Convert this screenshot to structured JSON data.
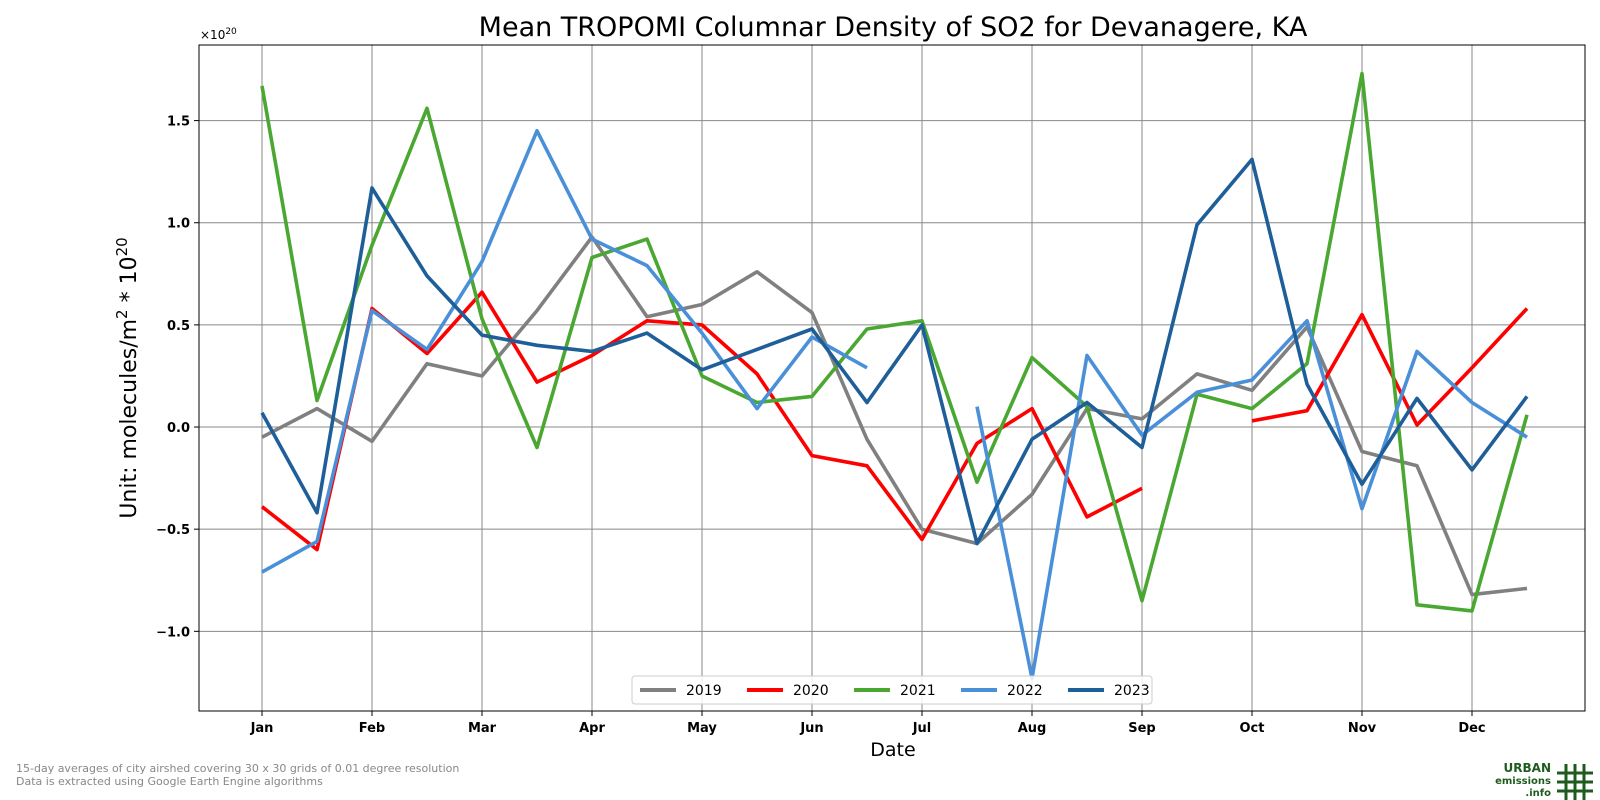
{
  "chart_data": {
    "type": "line",
    "title": "Mean TROPOMI Columnar Density of SO2 for Devanagere, KA",
    "xlabel": "Date",
    "ylabel_prefix": "Unit: molecules/m",
    "ylabel_sup1": "2",
    "ylabel_mid": " * 10",
    "ylabel_sup2": "20",
    "exponent_base": "×10",
    "exponent_sup": "20",
    "ylim": [
      -1.39,
      1.87
    ],
    "yticks": [
      -1.0,
      -0.5,
      0.0,
      0.5,
      1.0,
      1.5
    ],
    "ytick_labels": [
      "−1.0",
      "−0.5",
      "0.0",
      "0.5",
      "1.0",
      "1.5"
    ],
    "x_count": 24,
    "xticks": [
      "Jan",
      "Feb",
      "Mar",
      "Apr",
      "May",
      "Jun",
      "Jul",
      "Aug",
      "Sep",
      "Oct",
      "Nov",
      "Dec"
    ],
    "grid": true,
    "legend_position": "bottom-center",
    "series": [
      {
        "name": "2019",
        "color": "#808080",
        "values": [
          -0.05,
          0.09,
          -0.07,
          0.31,
          0.25,
          0.57,
          0.93,
          0.54,
          0.6,
          0.76,
          0.56,
          -0.06,
          -0.5,
          -0.57,
          -0.33,
          0.09,
          0.04,
          0.26,
          0.18,
          0.49,
          -0.12,
          -0.19,
          -0.82,
          -0.79
        ]
      },
      {
        "name": "2020",
        "color": "#ff0000",
        "values": [
          -0.39,
          -0.6,
          0.58,
          0.36,
          0.66,
          0.22,
          0.35,
          0.52,
          0.5,
          0.26,
          -0.14,
          -0.19,
          -0.55,
          -0.08,
          0.09,
          -0.44,
          -0.3,
          null,
          0.03,
          0.08,
          0.55,
          0.01,
          0.29,
          0.58
        ]
      },
      {
        "name": "2021",
        "color": "#4aa832",
        "values": [
          1.67,
          0.13,
          0.89,
          1.56,
          0.53,
          -0.1,
          0.83,
          0.92,
          0.25,
          0.12,
          0.15,
          0.48,
          0.52,
          -0.27,
          0.34,
          0.1,
          -0.85,
          0.16,
          0.09,
          0.31,
          1.73,
          -0.87,
          -0.9,
          0.06
        ]
      },
      {
        "name": "2022",
        "color": "#4a90d9",
        "values": [
          -0.71,
          -0.56,
          0.57,
          0.38,
          0.81,
          1.45,
          0.92,
          0.79,
          0.46,
          0.09,
          0.44,
          0.29,
          null,
          0.1,
          -1.23,
          0.35,
          -0.04,
          0.17,
          0.23,
          0.52,
          -0.4,
          0.37,
          0.12,
          -0.05
        ]
      },
      {
        "name": "2023",
        "color": "#1f5f99",
        "values": [
          0.07,
          -0.42,
          1.17,
          0.74,
          0.45,
          0.4,
          0.37,
          0.46,
          0.28,
          0.38,
          0.48,
          0.12,
          0.5,
          -0.57,
          -0.06,
          0.12,
          -0.1,
          0.99,
          1.31,
          0.21,
          -0.28,
          0.14,
          -0.21,
          0.15
        ]
      }
    ]
  },
  "footnote": {
    "line1": "15-day averages of city airshed covering 30 x 30 grids of 0.01 degree resolution",
    "line2": "Data is extracted using Google Earth Engine algorithms"
  },
  "logo": {
    "line1": "URBAN",
    "line2": "emissions",
    "line3": ".info"
  }
}
